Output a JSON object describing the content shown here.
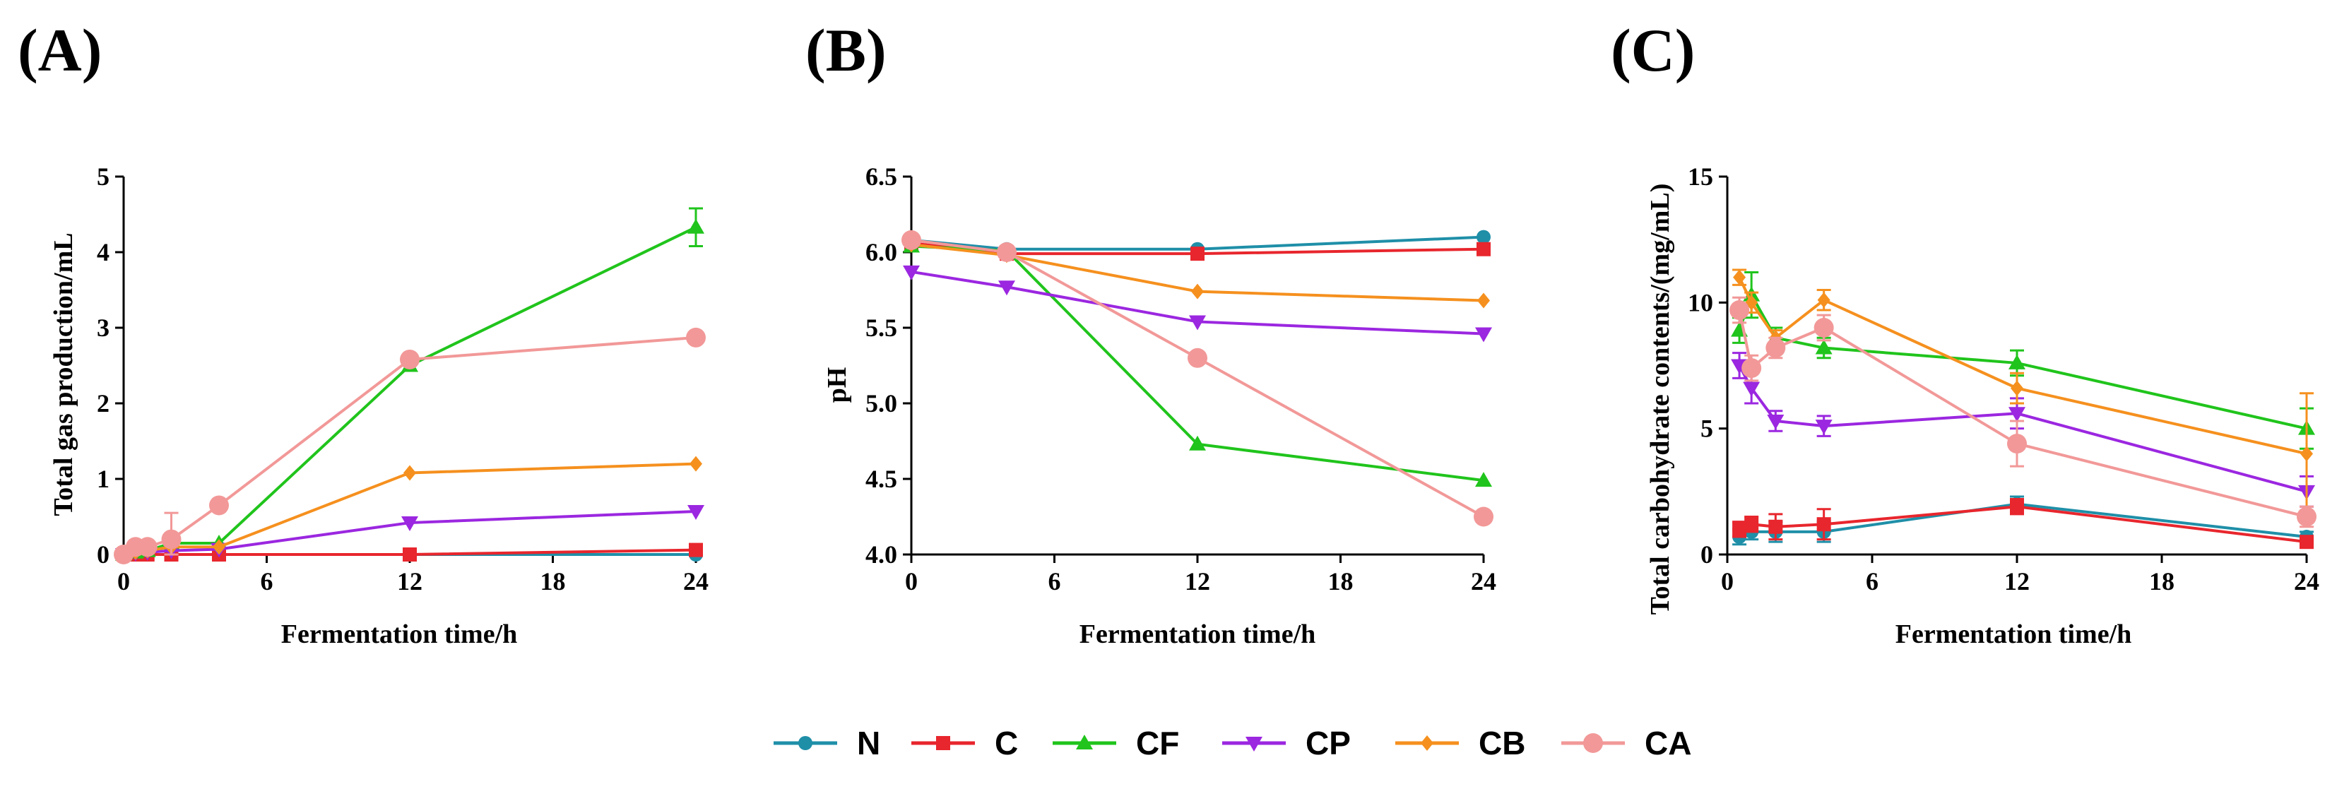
{
  "series_styles": [
    {
      "name": "N",
      "color": "#1f8fa8",
      "marker": "circle"
    },
    {
      "name": "C",
      "color": "#e8262d",
      "marker": "square"
    },
    {
      "name": "CF",
      "color": "#20c41c",
      "marker": "triangle-up"
    },
    {
      "name": "CP",
      "color": "#9b27e0",
      "marker": "triangle-down"
    },
    {
      "name": "CB",
      "color": "#f5901e",
      "marker": "diamond"
    },
    {
      "name": "CA",
      "color": "#f29898",
      "marker": "big-circle"
    }
  ],
  "chart_data": [
    {
      "panel": "(A)",
      "type": "line",
      "title": "",
      "xlabel": "Fermentation time/h",
      "ylabel": "Total gas production/mL",
      "xlim": [
        0,
        24
      ],
      "ylim": [
        0,
        5
      ],
      "xticks": [
        0,
        6,
        12,
        18,
        24
      ],
      "yticks": [
        0,
        1,
        2,
        3,
        4,
        5
      ],
      "ytick_labels": [
        "0",
        "1",
        "2",
        "3",
        "4",
        "5"
      ],
      "series": [
        {
          "name": "N",
          "x": [
            0,
            0.5,
            1,
            2,
            4,
            12,
            24
          ],
          "y": [
            0,
            0,
            0,
            0,
            0,
            0,
            0
          ]
        },
        {
          "name": "C",
          "x": [
            0,
            0.5,
            1,
            2,
            4,
            12,
            24
          ],
          "y": [
            0,
            0,
            0,
            0,
            0,
            0,
            0.06
          ]
        },
        {
          "name": "CF",
          "x": [
            0,
            0.5,
            1,
            2,
            4,
            12,
            24
          ],
          "y": [
            0,
            0.03,
            0.05,
            0.15,
            0.15,
            2.5,
            4.33
          ],
          "err": [
            0,
            0,
            0,
            0.05,
            0,
            0,
            0.25
          ]
        },
        {
          "name": "CP",
          "x": [
            0,
            0.5,
            1,
            2,
            4,
            12,
            24
          ],
          "y": [
            0,
            0.02,
            0.03,
            0.05,
            0.07,
            0.42,
            0.57
          ]
        },
        {
          "name": "CB",
          "x": [
            0,
            0.5,
            1,
            2,
            4,
            12,
            24
          ],
          "y": [
            0,
            0.03,
            0.05,
            0.1,
            0.1,
            1.08,
            1.2
          ]
        },
        {
          "name": "CA",
          "x": [
            0,
            0.5,
            1,
            2,
            4,
            12,
            24
          ],
          "y": [
            0,
            0.1,
            0.1,
            0.2,
            0.65,
            2.58,
            2.87
          ],
          "err": [
            0,
            0.05,
            0.05,
            0.35,
            0,
            0,
            0
          ]
        }
      ]
    },
    {
      "panel": "(B)",
      "type": "line",
      "title": "",
      "xlabel": "Fermentation time/h",
      "ylabel": "pH",
      "xlim": [
        0,
        24
      ],
      "ylim": [
        4.0,
        6.5
      ],
      "xticks": [
        0,
        6,
        12,
        18,
        24
      ],
      "yticks": [
        4.0,
        4.5,
        5.0,
        5.5,
        6.0,
        6.5
      ],
      "ytick_labels": [
        "4.0",
        "4.5",
        "5.0",
        "5.5",
        "6.0",
        "6.5"
      ],
      "series": [
        {
          "name": "N",
          "x": [
            0,
            4,
            12,
            24
          ],
          "y": [
            6.08,
            6.02,
            6.02,
            6.1
          ]
        },
        {
          "name": "C",
          "x": [
            0,
            4,
            12,
            24
          ],
          "y": [
            6.06,
            5.99,
            5.99,
            6.02
          ]
        },
        {
          "name": "CF",
          "x": [
            0,
            4,
            12,
            24
          ],
          "y": [
            6.04,
            6.01,
            4.73,
            4.49
          ]
        },
        {
          "name": "CP",
          "x": [
            0,
            4,
            12,
            24
          ],
          "y": [
            5.87,
            5.77,
            5.54,
            5.46
          ]
        },
        {
          "name": "CB",
          "x": [
            0,
            4,
            12,
            24
          ],
          "y": [
            6.05,
            5.98,
            5.74,
            5.68
          ]
        },
        {
          "name": "CA",
          "x": [
            0,
            4,
            12,
            24
          ],
          "y": [
            6.08,
            6.0,
            5.3,
            4.25
          ]
        }
      ]
    },
    {
      "panel": "(C)",
      "type": "line",
      "title": "",
      "xlabel": "Fermentation time/h",
      "ylabel": "Total carbohydrate contents/(mg/mL)",
      "xlim": [
        0,
        24
      ],
      "ylim": [
        0,
        15
      ],
      "xticks": [
        0,
        6,
        12,
        18,
        24
      ],
      "yticks": [
        0,
        5,
        10,
        15
      ],
      "ytick_labels": [
        "0",
        "5",
        "10",
        "15"
      ],
      "series": [
        {
          "name": "N",
          "x": [
            0.5,
            1,
            2,
            4,
            12,
            24
          ],
          "y": [
            0.7,
            0.9,
            0.9,
            0.9,
            2.0,
            0.7
          ],
          "err": [
            0.3,
            0.3,
            0.4,
            0.4,
            0.3,
            0.2
          ]
        },
        {
          "name": "C",
          "x": [
            0.5,
            1,
            2,
            4,
            12,
            24
          ],
          "y": [
            1.0,
            1.2,
            1.1,
            1.2,
            1.9,
            0.5
          ],
          "err": [
            0.3,
            0.3,
            0.5,
            0.6,
            0.3,
            0.2
          ]
        },
        {
          "name": "CF",
          "x": [
            0.5,
            1,
            2,
            4,
            12,
            24
          ],
          "y": [
            8.9,
            10.3,
            8.6,
            8.2,
            7.6,
            5.0
          ],
          "err": [
            0.5,
            0.9,
            0.4,
            0.4,
            0.5,
            0.8
          ]
        },
        {
          "name": "CP",
          "x": [
            0.5,
            1,
            2,
            4,
            12,
            24
          ],
          "y": [
            7.5,
            6.6,
            5.3,
            5.1,
            5.6,
            2.5
          ],
          "err": [
            0.5,
            0.6,
            0.4,
            0.4,
            0.6,
            0.6
          ]
        },
        {
          "name": "CB",
          "x": [
            0.5,
            1,
            2,
            4,
            12,
            24
          ],
          "y": [
            11.0,
            10.0,
            8.6,
            10.1,
            6.6,
            4.0
          ],
          "err": [
            0.3,
            0.4,
            0.3,
            0.4,
            0.6,
            2.4
          ]
        },
        {
          "name": "CA",
          "x": [
            0.5,
            1,
            2,
            4,
            12,
            24
          ],
          "y": [
            9.7,
            7.4,
            8.2,
            9.0,
            4.4,
            1.5
          ],
          "err": [
            0.5,
            0.5,
            0.4,
            0.5,
            0.9,
            0.4
          ]
        }
      ]
    }
  ]
}
